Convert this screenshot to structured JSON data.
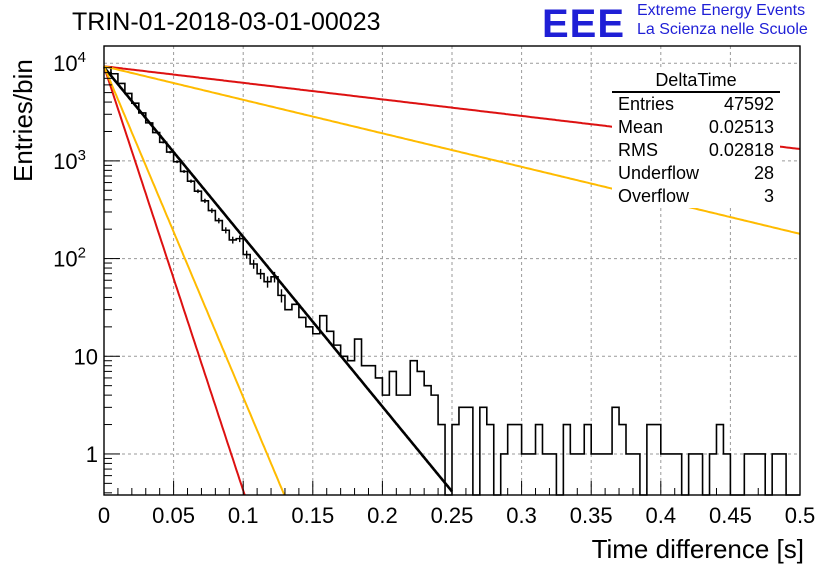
{
  "title": "TRIN-01-2018-03-01-00023",
  "logo": {
    "mark": "EEE",
    "line1": "Extreme Energy Events",
    "line2": "La Scienza nelle Scuole",
    "color": "#1f1fd6"
  },
  "axes": {
    "xlabel": "Time difference [s]",
    "ylabel": "Entries/bin",
    "xticks": [
      "0",
      "0.05",
      "0.1",
      "0.15",
      "0.2",
      "0.25",
      "0.3",
      "0.35",
      "0.4",
      "0.45",
      "0.5"
    ],
    "yticks": [
      {
        "base": "10",
        "exp": "4",
        "value": 10000
      },
      {
        "base": "10",
        "exp": "3",
        "value": 1000
      },
      {
        "base": "10",
        "exp": "2",
        "value": 100
      },
      {
        "base": "10",
        "exp": "",
        "value": 10
      },
      {
        "base": "1",
        "exp": "",
        "value": 1
      }
    ]
  },
  "stats": {
    "title": "DeltaTime",
    "rows": [
      {
        "label": "Entries",
        "value": "47592"
      },
      {
        "label": "Mean",
        "value": "0.02513"
      },
      {
        "label": "RMS",
        "value": "0.02818"
      },
      {
        "label": "Underflow",
        "value": "28"
      },
      {
        "label": "Overflow",
        "value": "3"
      }
    ]
  },
  "chart_data": {
    "type": "line",
    "xlim": [
      0,
      0.5
    ],
    "ylim": [
      0.38,
      15000
    ],
    "yscale": "log",
    "grid": true,
    "stats_box_placement": "top-right",
    "histogram": {
      "bin_width": 0.005,
      "color": "#000000",
      "counts": [
        9200,
        7800,
        6200,
        4900,
        3900,
        3100,
        2450,
        1950,
        1550,
        1230,
        980,
        780,
        620,
        490,
        390,
        310,
        245,
        195,
        155,
        160,
        110,
        88,
        70,
        58,
        65,
        42,
        30,
        34,
        25,
        20,
        17,
        26,
        18,
        13,
        10,
        9,
        15,
        8,
        8,
        6,
        4,
        7,
        4,
        4,
        9,
        7,
        5,
        4,
        2,
        0.3,
        2,
        3,
        3,
        0.3,
        3,
        2,
        0.3,
        1,
        2,
        2,
        1,
        1,
        2,
        1,
        1,
        0.3,
        2,
        1,
        1,
        2,
        1,
        1,
        1,
        3,
        2,
        1,
        1,
        0.3,
        2,
        2,
        1,
        1,
        1,
        0.3,
        1,
        1,
        0.3,
        1,
        2,
        1,
        0.3,
        0.3,
        1,
        1,
        1,
        0.3,
        1,
        1,
        0.3,
        0.3
      ]
    },
    "curves": [
      {
        "color": "#000000",
        "x0": 0,
        "y0": 9100,
        "slope_per_s": -40.0,
        "x_end": 0.25
      },
      {
        "color": "#dd1111",
        "x0": 0,
        "y0": 9300,
        "slope_per_s": -100.0,
        "x_end": 0.5
      },
      {
        "color": "#ffbb00",
        "x0": 0,
        "y0": 9300,
        "slope_per_s": -78.0,
        "x_end": 0.5
      },
      {
        "color": "#dd1111",
        "x0": 0,
        "y0": 9300,
        "slope_per_s": -3.9,
        "x_end": 0.5
      },
      {
        "color": "#ffbb00",
        "x0": 0,
        "y0": 9300,
        "slope_per_s": -7.9,
        "x_end": 0.5
      }
    ],
    "curve_notes": "exponential curves y = y0 * exp(slope_per_s * x)"
  }
}
